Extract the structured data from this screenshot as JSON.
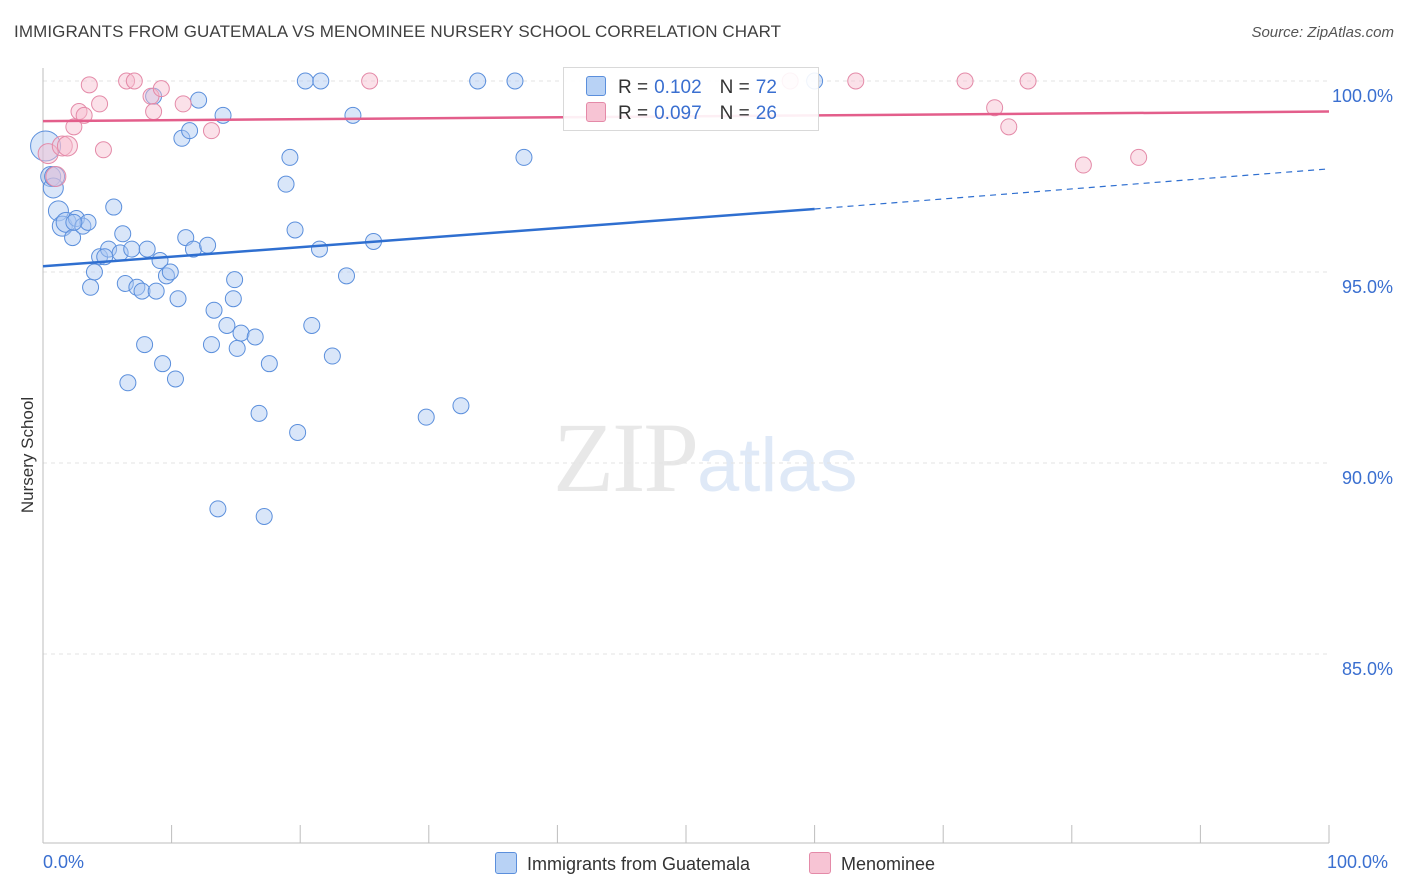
{
  "title": "IMMIGRANTS FROM GUATEMALA VS MENOMINEE NURSERY SCHOOL CORRELATION CHART",
  "source": "Source: ZipAtlas.com",
  "watermark": {
    "zip": "ZIP",
    "atlas": "atlas"
  },
  "colors": {
    "blue": "#3a78d8",
    "blue_fill": "#b8d2f5",
    "pink": "#e06a92",
    "pink_fill": "#f7c4d4",
    "axis_text": "#3a6fd0"
  },
  "legend": {
    "rows": [
      {
        "r_label": "R =",
        "r_value": "0.102",
        "n_label": "N =",
        "n_value": "72"
      },
      {
        "r_label": "R =",
        "r_value": "0.097",
        "n_label": "N =",
        "n_value": "26"
      }
    ]
  },
  "chart_data": {
    "type": "scatter",
    "title": "IMMIGRANTS FROM GUATEMALA VS MENOMINEE NURSERY SCHOOL CORRELATION CHART",
    "xlabel": "",
    "ylabel": "Nursery School",
    "xlim": [
      0,
      100
    ],
    "ylim": [
      80.5,
      101.0
    ],
    "x_tick_labels": [
      "0.0%",
      "100.0%"
    ],
    "y_ticks": [
      85,
      90,
      95,
      100
    ],
    "y_tick_labels": [
      "85.0%",
      "90.0%",
      "95.0%",
      "100.0%"
    ],
    "grid": true,
    "legend_position": "top-center",
    "series": [
      {
        "name": "Immigrants from Guatemala",
        "color": "blue",
        "R": 0.102,
        "N": 72,
        "trend": {
          "x0": 0,
          "y0": 95.15,
          "x1": 60,
          "y1": 96.65,
          "dash_to_x": 100,
          "dash_to_y": 97.7
        },
        "points": [
          [
            0.2,
            98.3
          ],
          [
            0.6,
            97.5
          ],
          [
            0.8,
            97.2
          ],
          [
            1.2,
            96.6
          ],
          [
            1.5,
            96.2
          ],
          [
            1.8,
            96.3
          ],
          [
            2.3,
            95.9
          ],
          [
            2.6,
            96.4
          ],
          [
            3.1,
            96.2
          ],
          [
            3.5,
            96.3
          ],
          [
            3.7,
            94.6
          ],
          [
            4.0,
            95.0
          ],
          [
            4.4,
            95.4
          ],
          [
            5.1,
            95.6
          ],
          [
            5.5,
            96.7
          ],
          [
            6.0,
            95.5
          ],
          [
            6.2,
            96.0
          ],
          [
            6.4,
            94.7
          ],
          [
            6.6,
            92.1
          ],
          [
            6.9,
            95.6
          ],
          [
            7.3,
            94.6
          ],
          [
            7.7,
            94.5
          ],
          [
            7.9,
            93.1
          ],
          [
            8.1,
            95.6
          ],
          [
            8.6,
            99.6
          ],
          [
            8.8,
            94.5
          ],
          [
            9.1,
            95.3
          ],
          [
            9.3,
            92.6
          ],
          [
            9.6,
            94.9
          ],
          [
            9.9,
            95.0
          ],
          [
            10.3,
            92.2
          ],
          [
            10.5,
            94.3
          ],
          [
            10.8,
            98.5
          ],
          [
            11.1,
            95.9
          ],
          [
            11.4,
            98.7
          ],
          [
            11.7,
            95.6
          ],
          [
            12.1,
            99.5
          ],
          [
            12.8,
            95.7
          ],
          [
            13.1,
            93.1
          ],
          [
            13.3,
            94.0
          ],
          [
            13.6,
            88.8
          ],
          [
            14.0,
            99.1
          ],
          [
            14.3,
            93.6
          ],
          [
            14.8,
            94.3
          ],
          [
            14.9,
            94.8
          ],
          [
            15.1,
            93.0
          ],
          [
            15.4,
            93.4
          ],
          [
            16.5,
            93.3
          ],
          [
            16.8,
            91.3
          ],
          [
            17.2,
            88.6
          ],
          [
            17.6,
            92.6
          ],
          [
            18.9,
            97.3
          ],
          [
            19.2,
            98.0
          ],
          [
            19.6,
            96.1
          ],
          [
            19.8,
            90.8
          ],
          [
            20.4,
            100.0
          ],
          [
            20.9,
            93.6
          ],
          [
            21.5,
            95.6
          ],
          [
            21.6,
            100.0
          ],
          [
            22.5,
            92.8
          ],
          [
            23.6,
            94.9
          ],
          [
            24.1,
            99.1
          ],
          [
            25.7,
            95.8
          ],
          [
            29.8,
            91.2
          ],
          [
            32.5,
            91.5
          ],
          [
            33.8,
            100.0
          ],
          [
            36.7,
            100.0
          ],
          [
            37.4,
            98.0
          ],
          [
            60.0,
            100.0
          ],
          [
            0.9,
            97.5
          ],
          [
            2.4,
            96.3
          ],
          [
            4.8,
            95.4
          ]
        ]
      },
      {
        "name": "Menominee",
        "color": "pink",
        "R": 0.097,
        "N": 26,
        "trend": {
          "x0": 0,
          "y0": 98.95,
          "x1": 100,
          "y1": 99.2
        },
        "points": [
          [
            0.4,
            98.1
          ],
          [
            1.0,
            97.5
          ],
          [
            1.5,
            98.3
          ],
          [
            1.9,
            98.3
          ],
          [
            2.4,
            98.8
          ],
          [
            2.8,
            99.2
          ],
          [
            3.2,
            99.1
          ],
          [
            3.6,
            99.9
          ],
          [
            4.4,
            99.4
          ],
          [
            4.7,
            98.2
          ],
          [
            6.5,
            100.0
          ],
          [
            7.1,
            100.0
          ],
          [
            8.4,
            99.6
          ],
          [
            8.6,
            99.2
          ],
          [
            9.2,
            99.8
          ],
          [
            10.9,
            99.4
          ],
          [
            13.1,
            98.7
          ],
          [
            25.4,
            100.0
          ],
          [
            58.1,
            100.0
          ],
          [
            63.2,
            100.0
          ],
          [
            71.7,
            100.0
          ],
          [
            74.0,
            99.3
          ],
          [
            75.1,
            98.8
          ],
          [
            76.6,
            100.0
          ],
          [
            80.9,
            97.8
          ],
          [
            85.2,
            98.0
          ]
        ]
      }
    ]
  },
  "bottom_legend": [
    "Immigrants from Guatemala",
    "Menominee"
  ]
}
